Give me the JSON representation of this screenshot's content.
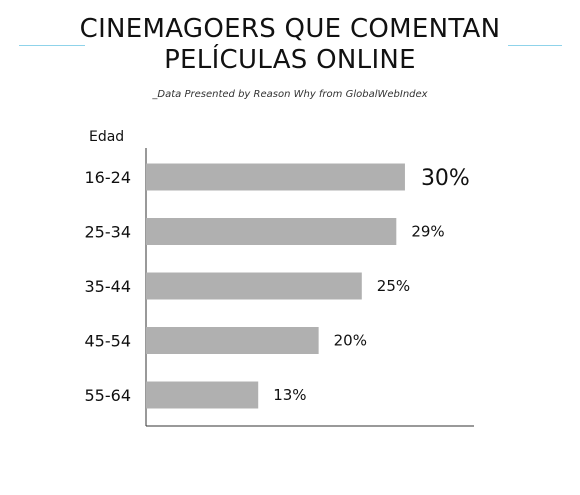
{
  "header": {
    "title_line1": "CINEMAGOERS QUE COMENTAN",
    "title_line2": "PELÍCULAS ONLINE",
    "subtitle": "_Data Presented by Reason Why from GlobalWebIndex"
  },
  "colors": {
    "bar": "#b0b0b0",
    "highlight_label": "#e6007e",
    "accent_rule": "#8fd3ea",
    "axis": "#333333"
  },
  "chart_data": {
    "type": "bar",
    "orientation": "horizontal",
    "ylabel": "Edad",
    "categories": [
      "16-24",
      "25-34",
      "35-44",
      "45-54",
      "55-64"
    ],
    "values": [
      30,
      29,
      25,
      20,
      13
    ],
    "data_labels": [
      "30%",
      "29%",
      "25%",
      "20%",
      "13%"
    ],
    "highlight_index": 0,
    "xlim": [
      0,
      38
    ],
    "grid": false
  }
}
